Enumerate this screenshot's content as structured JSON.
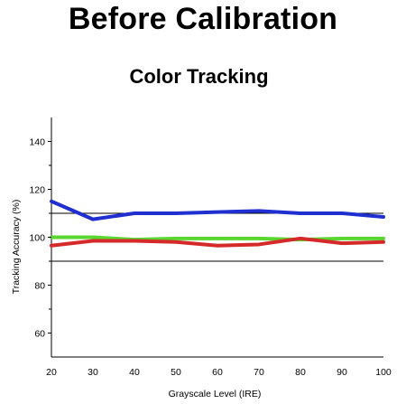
{
  "page": {
    "title": "Before Calibration"
  },
  "chart_data": {
    "type": "line",
    "title": "Color Tracking",
    "xlabel": "Grayscale Level (IRE)",
    "ylabel": "Tracking Accuracy (%)",
    "x": [
      20,
      30,
      40,
      50,
      60,
      70,
      80,
      90,
      100
    ],
    "xlim": [
      20,
      100
    ],
    "ylim": [
      50,
      150
    ],
    "xticks": [
      20,
      30,
      40,
      50,
      60,
      70,
      80,
      90,
      100
    ],
    "yticks_labeled": [
      60,
      80,
      100,
      120,
      140
    ],
    "yticks_minor": [
      70,
      90,
      110,
      130
    ],
    "reference_lines": [
      110,
      90
    ],
    "grid": false,
    "legend": "none",
    "series": [
      {
        "color": "#1f2fd0",
        "values": [
          115,
          107.5,
          110,
          110,
          110.5,
          111,
          110,
          110,
          108.5
        ]
      },
      {
        "color": "#5ad631",
        "values": [
          100,
          100,
          99,
          99.5,
          99.5,
          99.5,
          99,
          99.5,
          99.5
        ]
      },
      {
        "color": "#d62a2a",
        "values": [
          96.5,
          98.5,
          98.5,
          98,
          96.5,
          97,
          99.5,
          97.5,
          98
        ]
      }
    ]
  }
}
